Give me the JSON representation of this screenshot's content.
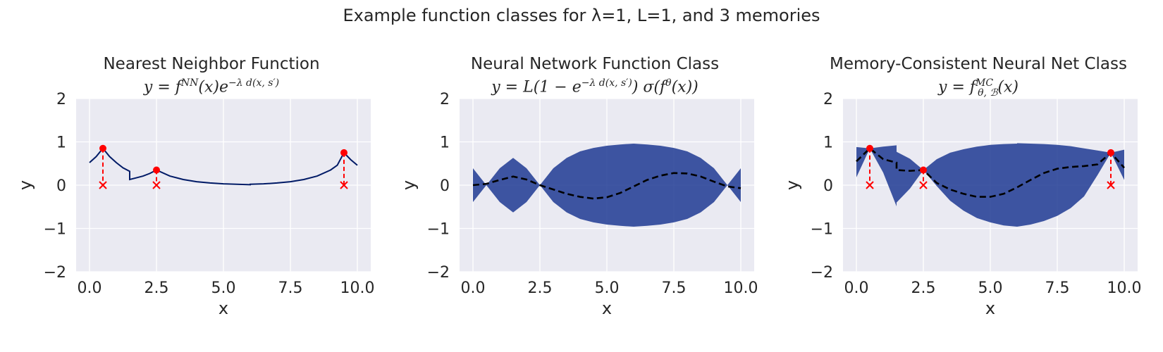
{
  "figure": {
    "title": "Example function classes for λ=1, L=1, and 3 memories"
  },
  "colors": {
    "axes_bg": "#eaeaf2",
    "grid": "#ffffff",
    "band": "#1f3a93",
    "curve": "#001a66",
    "memory": "#ff0000",
    "mean": "#000000"
  },
  "chart_data": [
    {
      "type": "line",
      "title": "Nearest Neighbor Function",
      "formula": "y = f^NN(x) e^(−λ d(x,s′))",
      "formula_parts": {
        "a": "y = f",
        "sup": "NN",
        "b": "(x)e",
        "sup2": "−λ d(x, s′)"
      },
      "xlabel": "x",
      "ylabel": "y",
      "xlim": [
        -0.5,
        10.5
      ],
      "ylim": [
        -2,
        2
      ],
      "xticks": [
        "0.0",
        "2.5",
        "5.0",
        "7.5",
        "10.0"
      ],
      "yticks": [
        "−2",
        "−1",
        "0",
        "1",
        "2"
      ],
      "xtick_values": [
        0,
        2.5,
        5,
        7.5,
        10
      ],
      "ytick_values": [
        -2,
        -1,
        0,
        1,
        2
      ],
      "memories": {
        "x": [
          0.5,
          2.5,
          9.5
        ],
        "y": [
          0.85,
          0.35,
          0.75
        ]
      },
      "series": [
        {
          "x": [
            0,
            0.25,
            0.5,
            0.75,
            1.0,
            1.25,
            1.5,
            1.5,
            1.75,
            2.0,
            2.25,
            2.5,
            3.0,
            3.5,
            4.0,
            4.5,
            5.0,
            5.5,
            6.0,
            6.0,
            6.5,
            7.0,
            7.5,
            8.0,
            8.5,
            9.0,
            9.25,
            9.5,
            9.75,
            10.0
          ],
          "y": [
            0.52,
            0.66,
            0.85,
            0.66,
            0.52,
            0.4,
            0.32,
            0.13,
            0.17,
            0.21,
            0.27,
            0.35,
            0.21,
            0.13,
            0.08,
            0.05,
            0.03,
            0.02,
            0.01,
            0.02,
            0.03,
            0.05,
            0.08,
            0.13,
            0.21,
            0.35,
            0.46,
            0.75,
            0.59,
            0.46
          ]
        }
      ]
    },
    {
      "type": "area",
      "title": "Neural Network Function Class",
      "formula": "y = L(1 − e^(−λ d(x,s′))) σ(f^θ(x))",
      "formula_parts": {
        "a": "y = L(1 − e",
        "sup": "−λ d(x, s′)",
        "b": ") σ(f",
        "sup2": "θ",
        "c": "(x))"
      },
      "xlabel": "x",
      "ylabel": "y",
      "xlim": [
        -0.5,
        10.5
      ],
      "ylim": [
        -2,
        2
      ],
      "xticks": [
        "0.0",
        "2.5",
        "5.0",
        "7.5",
        "10.0"
      ],
      "yticks": [
        "−2",
        "−1",
        "0",
        "1",
        "2"
      ],
      "xtick_values": [
        0,
        2.5,
        5,
        7.5,
        10
      ],
      "ytick_values": [
        -2,
        -1,
        0,
        1,
        2
      ],
      "band": {
        "x": [
          0,
          0.5,
          1.0,
          1.5,
          2.0,
          2.5,
          3.0,
          3.5,
          4.0,
          4.5,
          5.0,
          5.5,
          6.0,
          6.5,
          7.0,
          7.5,
          8.0,
          8.5,
          9.0,
          9.5,
          10.0
        ],
        "upper": [
          0.39,
          0.0,
          0.39,
          0.63,
          0.39,
          0.0,
          0.39,
          0.63,
          0.78,
          0.86,
          0.91,
          0.94,
          0.96,
          0.94,
          0.91,
          0.86,
          0.78,
          0.63,
          0.39,
          0.0,
          0.39
        ]
      },
      "mean": {
        "x": [
          0,
          0.5,
          1.0,
          1.5,
          2.0,
          2.5,
          3.0,
          3.5,
          4.0,
          4.5,
          5.0,
          5.5,
          6.0,
          6.5,
          7.0,
          7.5,
          8.0,
          8.5,
          9.0,
          9.5,
          10.0
        ],
        "y": [
          0.0,
          0.03,
          0.12,
          0.2,
          0.13,
          0.0,
          -0.1,
          -0.2,
          -0.27,
          -0.31,
          -0.28,
          -0.18,
          -0.03,
          0.12,
          0.22,
          0.28,
          0.27,
          0.2,
          0.08,
          -0.03,
          -0.07
        ]
      }
    },
    {
      "type": "area",
      "title": "Memory-Consistent Neural Net Class",
      "formula": "y = f^MC_(θ,ℬ)(x)",
      "formula_parts": {
        "a": "y = f",
        "sup": "MC",
        "sub": "θ, ℬ",
        "b": "(x)"
      },
      "xlabel": "x",
      "ylabel": "y",
      "xlim": [
        -0.5,
        10.5
      ],
      "ylim": [
        -2,
        2
      ],
      "xticks": [
        "0.0",
        "2.5",
        "5.0",
        "7.5",
        "10.0"
      ],
      "yticks": [
        "−2",
        "−1",
        "0",
        "1",
        "2"
      ],
      "xtick_values": [
        0,
        2.5,
        5,
        7.5,
        10
      ],
      "ytick_values": [
        -2,
        -1,
        0,
        1,
        2
      ],
      "memories": {
        "x": [
          0.5,
          2.5,
          9.5
        ],
        "y": [
          0.85,
          0.35,
          0.75
        ]
      },
      "band": {
        "x": [
          0,
          0.5,
          1.0,
          1.5,
          1.5,
          2.0,
          2.5,
          3.0,
          3.5,
          4.0,
          4.5,
          5.0,
          5.5,
          6.0,
          6.0,
          6.5,
          7.0,
          7.5,
          8.0,
          8.5,
          9.0,
          9.5,
          10.0
        ],
        "upper": [
          0.88,
          0.85,
          0.89,
          0.92,
          0.77,
          0.61,
          0.35,
          0.6,
          0.75,
          0.83,
          0.89,
          0.93,
          0.95,
          0.96,
          0.97,
          0.96,
          0.95,
          0.93,
          0.9,
          0.85,
          0.8,
          0.75,
          0.82
        ],
        "lower": [
          0.18,
          0.85,
          0.29,
          -0.49,
          -0.4,
          -0.08,
          0.35,
          -0.02,
          -0.36,
          -0.59,
          -0.76,
          -0.86,
          -0.93,
          -0.96,
          -0.96,
          -0.91,
          -0.83,
          -0.71,
          -0.53,
          -0.26,
          0.23,
          0.75,
          0.12
        ]
      },
      "mean": {
        "x": [
          0,
          0.5,
          1.0,
          1.5,
          1.5,
          2.0,
          2.5,
          3.0,
          3.5,
          4.0,
          4.5,
          5.0,
          5.5,
          6.0,
          6.5,
          7.0,
          7.5,
          8.0,
          8.5,
          9.0,
          9.5,
          10.0
        ],
        "y": [
          0.55,
          0.85,
          0.6,
          0.52,
          0.35,
          0.33,
          0.35,
          0.05,
          -0.1,
          -0.2,
          -0.27,
          -0.27,
          -0.2,
          -0.05,
          0.12,
          0.28,
          0.38,
          0.42,
          0.44,
          0.48,
          0.75,
          0.4
        ]
      }
    }
  ]
}
